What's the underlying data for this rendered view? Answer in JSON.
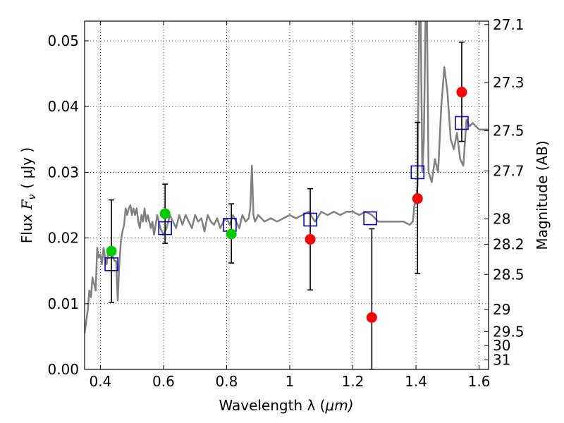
{
  "chart_data": {
    "type": "scatter",
    "title": "",
    "xlabel_text": "Wavelength  λ (",
    "xlabel_unit": "μm)",
    "ylabel_text": "Flux  ",
    "ylabel_symbol": "F",
    "ylabel_subscript": "ν",
    "ylabel_unit": "( μJy )",
    "y2label": "Magnitude (AB)",
    "xlim": [
      0.35,
      1.63
    ],
    "ylim": [
      0.0,
      0.053
    ],
    "grid": true,
    "x_ticks": [
      {
        "value": 0.4,
        "label": "0.4"
      },
      {
        "value": 0.6,
        "label": "0.6"
      },
      {
        "value": 0.8,
        "label": "0.8"
      },
      {
        "value": 1.0,
        "label": "1"
      },
      {
        "value": 1.2,
        "label": "1.2"
      },
      {
        "value": 1.4,
        "label": "1.4"
      },
      {
        "value": 1.6,
        "label": "1.6"
      }
    ],
    "y_ticks": [
      {
        "value": 0.0,
        "label": "0.00"
      },
      {
        "value": 0.01,
        "label": "0.01"
      },
      {
        "value": 0.02,
        "label": "0.02"
      },
      {
        "value": 0.03,
        "label": "0.03"
      },
      {
        "value": 0.04,
        "label": "0.04"
      },
      {
        "value": 0.05,
        "label": "0.05"
      }
    ],
    "y2_ticks": [
      {
        "mag": 27.1,
        "label": "27.1"
      },
      {
        "mag": 27.3,
        "label": "27.3"
      },
      {
        "mag": 27.5,
        "label": "27.5"
      },
      {
        "mag": 27.7,
        "label": "27.7"
      },
      {
        "mag": 28.0,
        "label": "28"
      },
      {
        "mag": 28.2,
        "label": "28.2"
      },
      {
        "mag": 28.5,
        "label": "28.5"
      },
      {
        "mag": 29.0,
        "label": "29"
      },
      {
        "mag": 29.5,
        "label": "29.5"
      },
      {
        "mag": 30.0,
        "label": "30"
      },
      {
        "mag": 31.0,
        "label": "31"
      }
    ],
    "series": [
      {
        "name": "model-spectrum",
        "kind": "line",
        "color": "#808080",
        "x": [
          0.35,
          0.36,
          0.365,
          0.37,
          0.375,
          0.38,
          0.385,
          0.39,
          0.395,
          0.4,
          0.405,
          0.41,
          0.415,
          0.42,
          0.425,
          0.43,
          0.435,
          0.44,
          0.445,
          0.45,
          0.455,
          0.46,
          0.465,
          0.47,
          0.475,
          0.48,
          0.485,
          0.49,
          0.495,
          0.5,
          0.505,
          0.51,
          0.515,
          0.52,
          0.525,
          0.53,
          0.535,
          0.54,
          0.545,
          0.55,
          0.555,
          0.56,
          0.565,
          0.57,
          0.58,
          0.59,
          0.6,
          0.61,
          0.62,
          0.63,
          0.64,
          0.65,
          0.66,
          0.67,
          0.68,
          0.69,
          0.7,
          0.71,
          0.72,
          0.73,
          0.74,
          0.75,
          0.76,
          0.77,
          0.78,
          0.79,
          0.8,
          0.81,
          0.82,
          0.83,
          0.84,
          0.85,
          0.86,
          0.87,
          0.875,
          0.88,
          0.885,
          0.89,
          0.9,
          0.92,
          0.94,
          0.96,
          0.98,
          1.0,
          1.02,
          1.04,
          1.06,
          1.08,
          1.1,
          1.12,
          1.14,
          1.16,
          1.18,
          1.2,
          1.22,
          1.24,
          1.26,
          1.28,
          1.3,
          1.32,
          1.34,
          1.36,
          1.38,
          1.39,
          1.395,
          1.4,
          1.405,
          1.41,
          1.415,
          1.42,
          1.425,
          1.43,
          1.435,
          1.44,
          1.45,
          1.46,
          1.47,
          1.48,
          1.49,
          1.5,
          1.51,
          1.52,
          1.53,
          1.54,
          1.55,
          1.56,
          1.57,
          1.58,
          1.59,
          1.6,
          1.61,
          1.62,
          1.63
        ],
        "y": [
          0.0055,
          0.009,
          0.012,
          0.011,
          0.014,
          0.013,
          0.012,
          0.0185,
          0.017,
          0.0175,
          0.016,
          0.0185,
          0.017,
          0.016,
          0.018,
          0.0175,
          0.018,
          0.017,
          0.0165,
          0.0165,
          0.0105,
          0.016,
          0.0195,
          0.021,
          0.022,
          0.0245,
          0.0235,
          0.0245,
          0.025,
          0.0235,
          0.0245,
          0.0235,
          0.0245,
          0.0225,
          0.0215,
          0.0235,
          0.0225,
          0.0245,
          0.0225,
          0.0235,
          0.0225,
          0.0215,
          0.0225,
          0.0205,
          0.0235,
          0.0215,
          0.0205,
          0.0215,
          0.0235,
          0.0225,
          0.0215,
          0.0235,
          0.022,
          0.0235,
          0.0225,
          0.0215,
          0.0235,
          0.0225,
          0.023,
          0.021,
          0.0235,
          0.0225,
          0.022,
          0.023,
          0.0215,
          0.0225,
          0.023,
          0.022,
          0.0235,
          0.0225,
          0.0215,
          0.0235,
          0.0225,
          0.023,
          0.0245,
          0.031,
          0.0235,
          0.0225,
          0.0235,
          0.0225,
          0.023,
          0.0225,
          0.023,
          0.0235,
          0.023,
          0.0235,
          0.024,
          0.0225,
          0.024,
          0.0235,
          0.024,
          0.0235,
          0.024,
          0.024,
          0.0235,
          0.024,
          0.0235,
          0.0225,
          0.0225,
          0.0225,
          0.0225,
          0.0225,
          0.022,
          0.0225,
          0.025,
          0.026,
          0.028,
          0.053,
          0.053,
          0.03,
          0.035,
          0.053,
          0.053,
          0.03,
          0.0285,
          0.032,
          0.03,
          0.04,
          0.046,
          0.042,
          0.035,
          0.0335,
          0.036,
          0.032,
          0.031,
          0.038,
          0.037,
          0.0375,
          0.037,
          0.0365,
          0.0365,
          0.0365,
          0.0365
        ]
      },
      {
        "name": "model-bandpass",
        "kind": "open-square",
        "color": "#0000cc",
        "x": [
          0.435,
          0.605,
          0.81,
          1.065,
          1.255,
          1.405,
          1.545
        ],
        "y": [
          0.016,
          0.0215,
          0.022,
          0.0228,
          0.023,
          0.03,
          0.0375
        ]
      },
      {
        "name": "optical-photometry",
        "kind": "point",
        "color": "#00cc00",
        "x": [
          0.435,
          0.605,
          0.815
        ],
        "y": [
          0.018,
          0.0237,
          0.0206
        ],
        "yerr_low": [
          0.0102,
          0.0192,
          0.0162
        ],
        "yerr_high": [
          0.0258,
          0.0282,
          0.0252
        ]
      },
      {
        "name": "infrared-photometry",
        "kind": "point",
        "color": "#ff0000",
        "x": [
          1.065,
          1.26,
          1.405,
          1.545
        ],
        "y": [
          0.0198,
          0.0079,
          0.026,
          0.0422
        ],
        "yerr_low": [
          0.0121,
          0.0,
          0.0146,
          0.0347
        ],
        "yerr_high": [
          0.0275,
          0.0214,
          0.0376,
          0.0498
        ]
      }
    ]
  }
}
